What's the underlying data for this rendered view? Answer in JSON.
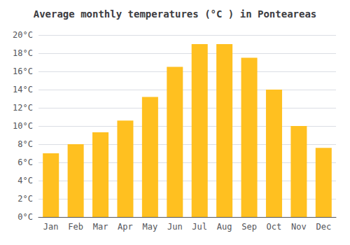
{
  "chart_data": {
    "type": "bar",
    "title": "Average monthly temperatures (°C ) in Ponteareas",
    "categories": [
      "Jan",
      "Feb",
      "Mar",
      "Apr",
      "May",
      "Jun",
      "Jul",
      "Aug",
      "Sep",
      "Oct",
      "Nov",
      "Dec"
    ],
    "values": [
      7.0,
      8.0,
      9.3,
      10.6,
      13.2,
      16.5,
      19.0,
      19.0,
      17.5,
      14.0,
      10.0,
      7.6
    ],
    "color": "#FFC020",
    "ylim": [
      0,
      20
    ],
    "yticks": [
      {
        "value": 0,
        "label": "0°C"
      },
      {
        "value": 2,
        "label": "2°C"
      },
      {
        "value": 4,
        "label": "4°C"
      },
      {
        "value": 6,
        "label": "6°C"
      },
      {
        "value": 8,
        "label": "8°C"
      },
      {
        "value": 10,
        "label": "10°C"
      },
      {
        "value": 12,
        "label": "12°C"
      },
      {
        "value": 14,
        "label": "14°C"
      },
      {
        "value": 16,
        "label": "16°C"
      },
      {
        "value": 18,
        "label": "18°C"
      },
      {
        "value": 20,
        "label": "20°C"
      }
    ],
    "grid": true
  }
}
